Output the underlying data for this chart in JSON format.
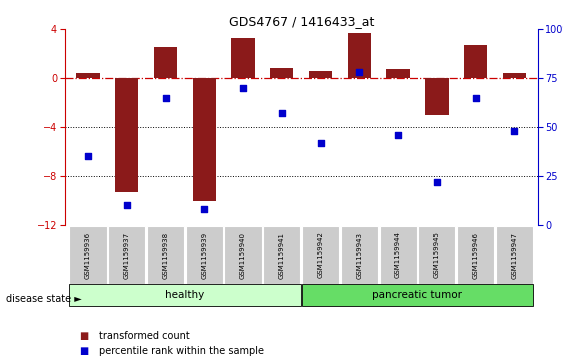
{
  "title": "GDS4767 / 1416433_at",
  "samples": [
    "GSM1159936",
    "GSM1159937",
    "GSM1159938",
    "GSM1159939",
    "GSM1159940",
    "GSM1159941",
    "GSM1159942",
    "GSM1159943",
    "GSM1159944",
    "GSM1159945",
    "GSM1159946",
    "GSM1159947"
  ],
  "bar_values": [
    0.4,
    -9.3,
    2.5,
    -10.0,
    3.3,
    0.8,
    0.6,
    3.7,
    0.7,
    -3.0,
    2.7,
    0.4
  ],
  "dot_values_pct": [
    35,
    10,
    65,
    8,
    70,
    57,
    42,
    78,
    46,
    22,
    65,
    48
  ],
  "ylim_left": [
    -12,
    4
  ],
  "ylim_right": [
    0,
    100
  ],
  "yticks_left": [
    -12,
    -8,
    -4,
    0,
    4
  ],
  "yticks_right": [
    0,
    25,
    50,
    75,
    100
  ],
  "bar_color": "#8B1A1A",
  "dot_color": "#0000CC",
  "zero_line_color": "#CC0000",
  "grid_color": "#000000",
  "bg_color": "#FFFFFF",
  "healthy_count": 6,
  "tumor_count": 6,
  "healthy_label": "healthy",
  "tumor_label": "pancreatic tumor",
  "disease_state_label": "disease state",
  "legend_bar_label": "transformed count",
  "legend_dot_label": "percentile rank within the sample",
  "healthy_color": "#CCFFCC",
  "tumor_color": "#66DD66",
  "sample_box_color": "#CCCCCC"
}
